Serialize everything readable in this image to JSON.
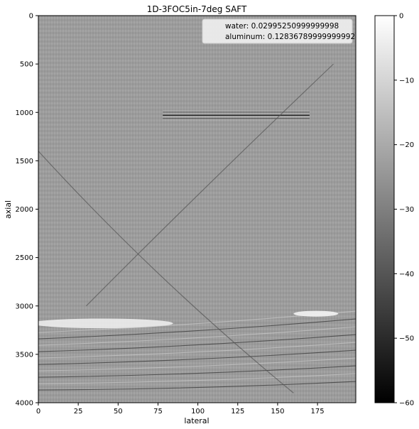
{
  "chart_data": {
    "type": "heatmap",
    "title": "1D-3FOC5in-7deg SAFT",
    "xlabel": "lateral",
    "ylabel": "axial",
    "xlim": [
      0,
      199
    ],
    "ylim": [
      4000,
      0
    ],
    "x_ticks": [
      "0",
      "25",
      "50",
      "75",
      "100",
      "125",
      "150",
      "175"
    ],
    "y_ticks": [
      "0",
      "500",
      "1000",
      "1500",
      "2000",
      "2500",
      "3000",
      "3500",
      "4000"
    ],
    "colorbar": {
      "range": [
        -60,
        0
      ],
      "ticks": [
        "0",
        "−10",
        "−20",
        "−30",
        "−40",
        "−50",
        "−60"
      ],
      "colormap": "gray"
    },
    "legend": {
      "placement": "top-right",
      "entries": [
        "water: 0.02995250999999998",
        "aluminum: 0.12836789999999992"
      ]
    },
    "background_db": -20,
    "features": [
      {
        "kind": "horizontal-echo",
        "x": [
          78,
          170
        ],
        "y": 1030,
        "intensity": "dark"
      },
      {
        "kind": "bright-band",
        "x": [
          0,
          80
        ],
        "y": [
          3130,
          3230
        ],
        "intensity": "bright"
      },
      {
        "kind": "bright-spot",
        "x": [
          160,
          188
        ],
        "y": [
          3050,
          3110
        ],
        "intensity": "bright"
      },
      {
        "kind": "diagonal-arc",
        "from": [
          30,
          3000
        ],
        "to": [
          185,
          500
        ]
      },
      {
        "kind": "diagonal-arc",
        "from": [
          0,
          1400
        ],
        "to": [
          160,
          3900
        ]
      }
    ]
  }
}
